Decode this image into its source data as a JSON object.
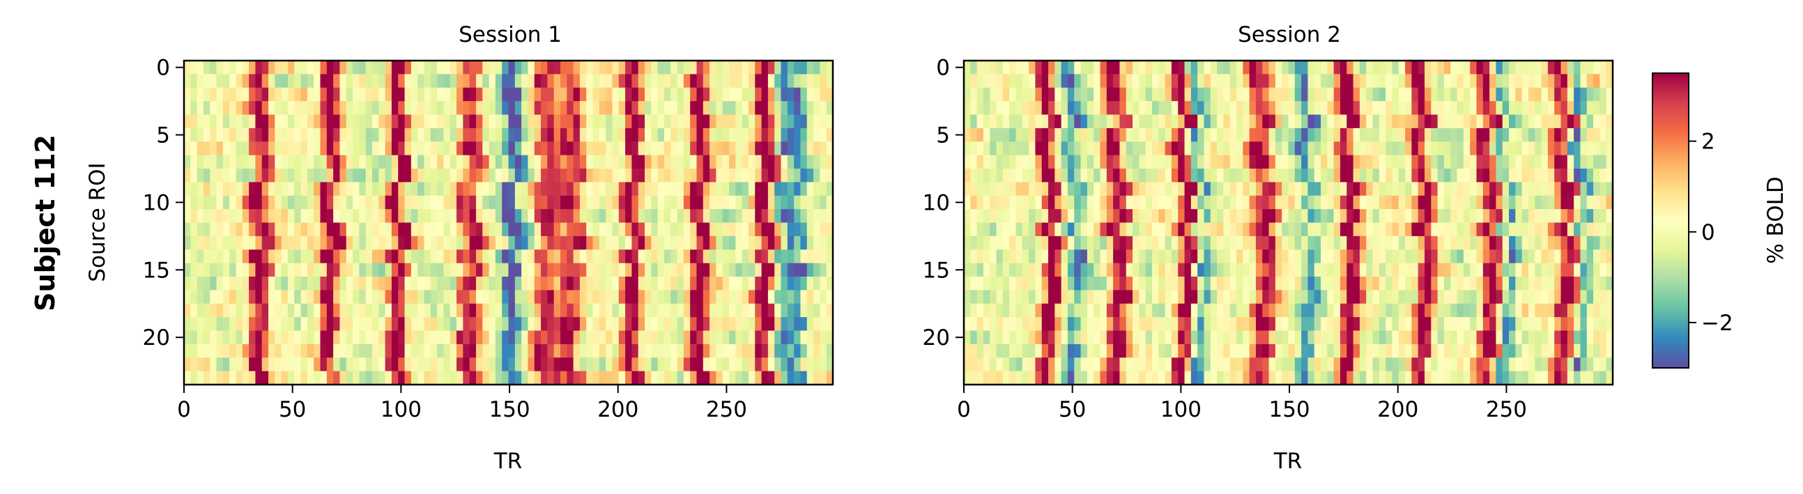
{
  "figure": {
    "row_label": "Subject 112"
  },
  "chart_data": [
    {
      "type": "heatmap",
      "title": "Session 1",
      "xlabel": "TR",
      "ylabel": "Source ROI",
      "xlim": [
        0,
        299
      ],
      "ylim": [
        23,
        0
      ],
      "n_rows": 24,
      "n_cols": 300,
      "xticks": [
        "0",
        "50",
        "100",
        "150",
        "200",
        "250"
      ],
      "yticks": [
        "0",
        "5",
        "10",
        "15",
        "20"
      ],
      "colormap": "Spectral_r",
      "value_range": [
        -3,
        3.5
      ],
      "peak_columns_TR": [
        33,
        37,
        66,
        69,
        98,
        100,
        130,
        135,
        165,
        170,
        176,
        181,
        206,
        209,
        237,
        240,
        267,
        270
      ],
      "trough_columns_TR": [
        150,
        153,
        278,
        284
      ]
    },
    {
      "type": "heatmap",
      "title": "Session 2",
      "xlabel": "TR",
      "ylabel": "",
      "xlim": [
        0,
        299
      ],
      "ylim": [
        23,
        0
      ],
      "n_rows": 24,
      "n_cols": 300,
      "xticks": [
        "0",
        "50",
        "100",
        "150",
        "200",
        "250"
      ],
      "yticks": [
        "0",
        "5",
        "10",
        "15",
        "20"
      ],
      "colormap": "Spectral_r",
      "value_range": [
        -3,
        3.5
      ],
      "peak_columns_TR": [
        37,
        40,
        68,
        72,
        100,
        103,
        135,
        140,
        176,
        179,
        210,
        213,
        240,
        244,
        275,
        279
      ],
      "trough_columns_TR": [
        50,
        108,
        158,
        250,
        285
      ]
    }
  ],
  "colorbar": {
    "label": "% BOLD",
    "range": [
      -3,
      3.5
    ],
    "ticks": [
      {
        "value": 2,
        "label": "2"
      },
      {
        "value": 0,
        "label": "0"
      },
      {
        "value": -2,
        "label": "−2"
      }
    ]
  }
}
